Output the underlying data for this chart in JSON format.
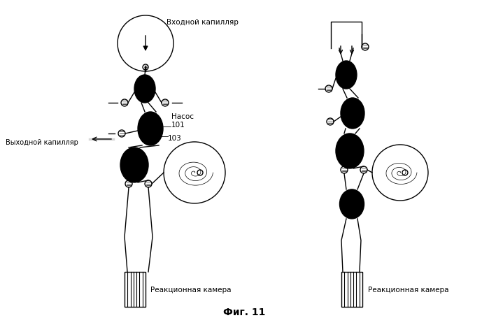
{
  "bg_color": "#ffffff",
  "text_color": "#000000",
  "inlet_label": "Входной капилляр",
  "outlet_label": "Выходной капилляр",
  "pump_label": "Насос\n101",
  "num_103": "103",
  "reaction_label": "Реакционная камера",
  "fig_label": "Фиг. 11"
}
